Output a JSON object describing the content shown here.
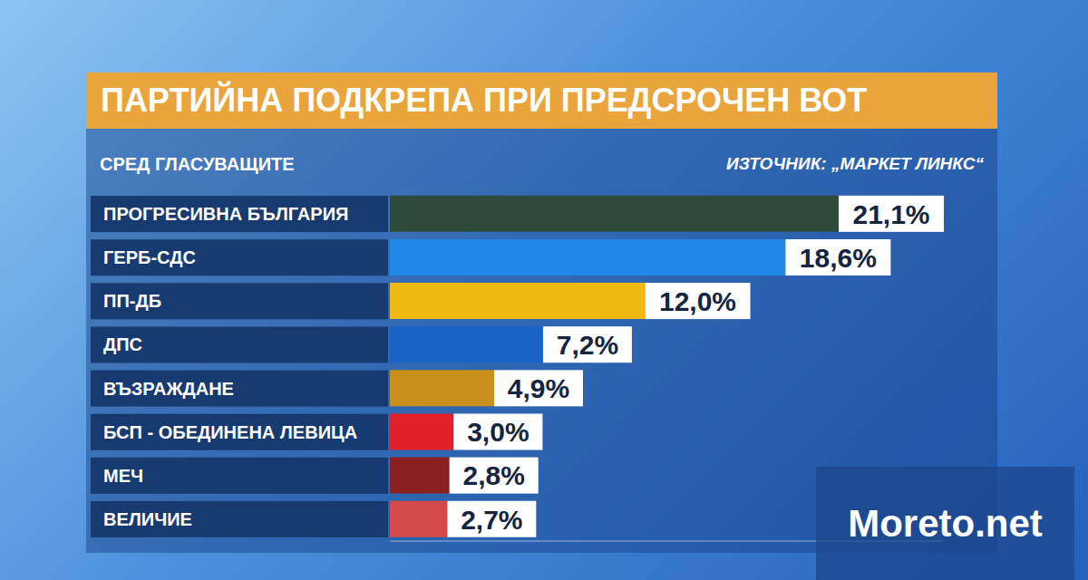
{
  "chart_data": {
    "type": "bar",
    "orientation": "horizontal",
    "title": "ПАРТИЙНА ПОДКРЕПА ПРИ ПРЕДСРОЧЕН ВОТ",
    "subtitle": "СРЕД ГЛАСУВАЩИТЕ",
    "source": "ИЗТОЧНИК: „МАРКЕТ ЛИНКС“",
    "watermark": "Moreto.net",
    "categories": [
      "ПРОГРЕСИВНА БЪЛГАРИЯ",
      "ГЕРБ-СДС",
      "ПП-ДБ",
      "ДПС",
      "ВЪЗРАЖДАНЕ",
      "БСП - ОБЕДИНЕНА ЛЕВИЦА",
      "МЕЧ",
      "ВЕЛИЧИЕ"
    ],
    "values": [
      21.1,
      18.6,
      12.0,
      7.2,
      4.9,
      3.0,
      2.8,
      2.7
    ],
    "value_labels": [
      "21,1%",
      "18,6%",
      "12,0%",
      "7,2%",
      "4,9%",
      "3,0%",
      "2,8%",
      "2,7%"
    ],
    "colors": [
      "#2e4a3b",
      "#1f8ae6",
      "#f0b812",
      "#1a63c4",
      "#c9911c",
      "#e2202a",
      "#8a2020",
      "#d44a4a"
    ],
    "xlim": [
      0,
      26
    ],
    "data_labels": true,
    "tick_labels": "y",
    "grid": false
  }
}
